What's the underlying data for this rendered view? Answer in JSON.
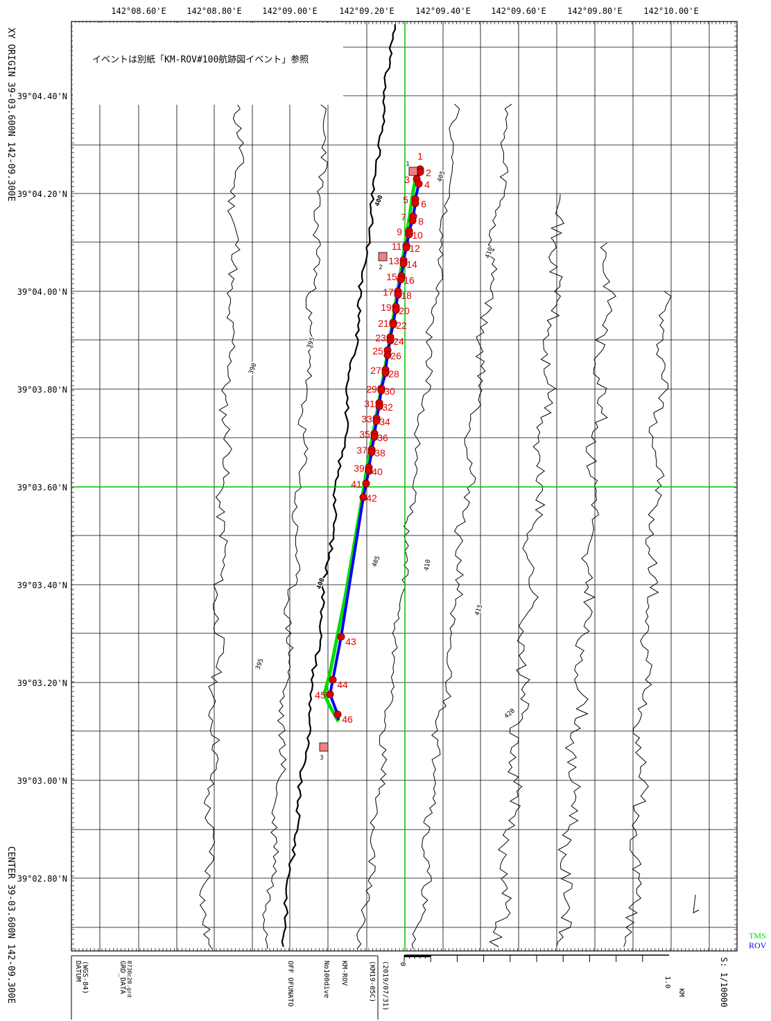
{
  "note": "イベントは別紙「KM-ROV#100航跡図イベント」参照",
  "top_longitudes": [
    "142°08.60'E",
    "142°08.80'E",
    "142°09.00'E",
    "142°09.20'E",
    "142°09.40'E",
    "142°09.60'E",
    "142°09.80'E",
    "142°10.00'E"
  ],
  "left_latitudes": [
    "39°04.40'N",
    "39°04.20'N",
    "39°04.00'N",
    "39°03.80'N",
    "39°03.60'N",
    "39°03.40'N",
    "39°03.20'N",
    "39°03.00'N",
    "39°02.80'N"
  ],
  "side_labels": {
    "xy_origin": "XY ORIGIN  39-03.600N   142-09.300E",
    "center": "CENTER 39-03.600N   142-09.300E"
  },
  "legend": {
    "tms": {
      "label": "TMS",
      "color": "#00dd00"
    },
    "rov": {
      "label": "ROV",
      "color": "#0000ff"
    }
  },
  "footer": {
    "datum": "DATUM",
    "datum_sub": "(WGS-84)",
    "grd_data": "GRD_DATA",
    "grd_file": "0730c20.grd",
    "area": "OFF OFUNATO",
    "dive": "No100dive",
    "vehicle": "KM-ROV",
    "cruise": "(KM19-05C)",
    "date": "(2019/07/31)",
    "scale_zero": "0",
    "scale_end": "1.0",
    "scale_unit": "KM",
    "scale_ratio": "S:  1/10000"
  },
  "contour_labels": [
    "390",
    "395",
    "400",
    "405",
    "410",
    "415",
    "420",
    "395",
    "400",
    "405",
    "410"
  ],
  "events": [
    "1",
    "2",
    "3",
    "4",
    "5",
    "6",
    "7",
    "8",
    "9",
    "10",
    "11",
    "12",
    "13",
    "14",
    "15",
    "16",
    "17",
    "18",
    "19",
    "20",
    "21",
    "22",
    "23",
    "24",
    "25",
    "26",
    "27",
    "28",
    "29",
    "30",
    "31",
    "32",
    "33",
    "34",
    "35",
    "36",
    "37",
    "38",
    "39",
    "40",
    "41",
    "42",
    "43",
    "44",
    "45",
    "46"
  ],
  "markers": [
    "1",
    "2",
    "3"
  ],
  "colors": {
    "event": "#e00000",
    "marker": "#f08080",
    "axis_line": "#00c000"
  }
}
